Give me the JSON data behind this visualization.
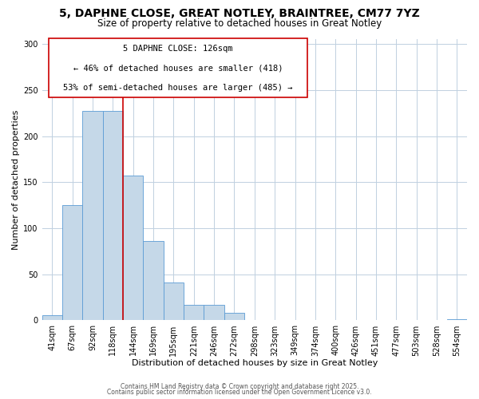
{
  "title": "5, DAPHNE CLOSE, GREAT NOTLEY, BRAINTREE, CM77 7YZ",
  "subtitle": "Size of property relative to detached houses in Great Notley",
  "xlabel": "Distribution of detached houses by size in Great Notley",
  "ylabel": "Number of detached properties",
  "categories": [
    "41sqm",
    "67sqm",
    "92sqm",
    "118sqm",
    "144sqm",
    "169sqm",
    "195sqm",
    "221sqm",
    "246sqm",
    "272sqm",
    "298sqm",
    "323sqm",
    "349sqm",
    "374sqm",
    "400sqm",
    "426sqm",
    "451sqm",
    "477sqm",
    "503sqm",
    "528sqm",
    "554sqm"
  ],
  "values": [
    6,
    125,
    227,
    227,
    157,
    86,
    41,
    17,
    17,
    8,
    0,
    0,
    0,
    0,
    0,
    0,
    0,
    0,
    0,
    0,
    1
  ],
  "bar_color": "#c5d8e8",
  "bar_edge_color": "#5b9bd5",
  "vline_x": 3.5,
  "vline_color": "#cc0000",
  "annotation_title": "5 DAPHNE CLOSE: 126sqm",
  "annotation_line1": "← 46% of detached houses are smaller (418)",
  "annotation_line2": "53% of semi-detached houses are larger (485) →",
  "box_color": "#cc0000",
  "ylim": [
    0,
    305
  ],
  "yticks": [
    0,
    50,
    100,
    150,
    200,
    250,
    300
  ],
  "footer1": "Contains HM Land Registry data © Crown copyright and database right 2025.",
  "footer2": "Contains public sector information licensed under the Open Government Licence v3.0.",
  "title_fontsize": 10,
  "subtitle_fontsize": 8.5,
  "axis_label_fontsize": 8,
  "tick_fontsize": 7,
  "annotation_fontsize": 7.5,
  "footer_fontsize": 5.5
}
